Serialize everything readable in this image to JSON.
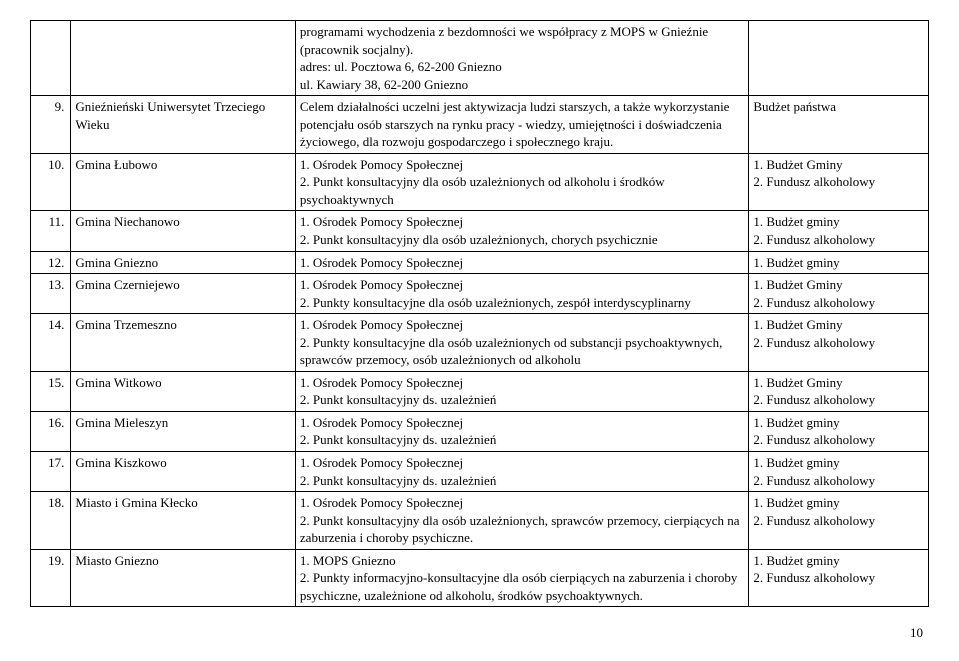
{
  "rows": [
    {
      "num": "",
      "name": "",
      "desc": "programami wychodzenia z bezdomności we współpracy z MOPS w Gnieźnie (pracownik socjalny).\nadres: ul. Pocztowa 6, 62-200 Gniezno\n             ul. Kawiary 38, 62-200 Gniezno",
      "fund": ""
    },
    {
      "num": "9.",
      "name": "Gnieźnieński Uniwersytet Trzeciego Wieku",
      "desc": "Celem działalności uczelni jest aktywizacja ludzi starszych, a także wykorzystanie potencjału osób starszych na rynku pracy - wiedzy, umiejętności i doświadczenia życiowego, dla rozwoju gospodarczego i społecznego kraju.",
      "fund": "Budżet państwa"
    },
    {
      "num": "10.",
      "name": "Gmina Łubowo",
      "desc": "1. Ośrodek Pomocy Społecznej\n2. Punkt konsultacyjny dla osób uzależnionych od alkoholu i środków psychoaktywnych",
      "fund": "1. Budżet Gminy\n2. Fundusz alkoholowy"
    },
    {
      "num": "11.",
      "name": "Gmina Niechanowo",
      "desc": "1. Ośrodek Pomocy Społecznej\n2. Punkt konsultacyjny dla osób uzależnionych, chorych psychicznie",
      "fund": "1. Budżet gminy\n2. Fundusz alkoholowy"
    },
    {
      "num": "12.",
      "name": "Gmina Gniezno",
      "desc": "1. Ośrodek Pomocy Społecznej",
      "fund": "1. Budżet gminy"
    },
    {
      "num": "13.",
      "name": "Gmina Czerniejewo",
      "desc": "1. Ośrodek Pomocy Społecznej\n2. Punkty konsultacyjne dla osób uzależnionych, zespół interdyscyplinarny",
      "fund": "1. Budżet Gminy\n2. Fundusz alkoholowy"
    },
    {
      "num": "14.",
      "name": "Gmina Trzemeszno",
      "desc": "1. Ośrodek Pomocy Społecznej\n2. Punkty konsultacyjne dla osób uzależnionych od substancji psychoaktywnych, sprawców przemocy, osób uzależnionych od alkoholu",
      "fund": "1. Budżet Gminy\n2. Fundusz alkoholowy"
    },
    {
      "num": "15.",
      "name": "Gmina Witkowo",
      "desc": "1. Ośrodek Pomocy Społecznej\n2. Punkt konsultacyjny ds. uzależnień",
      "fund": "1. Budżet Gminy\n2. Fundusz alkoholowy"
    },
    {
      "num": "16.",
      "name": "Gmina Mieleszyn",
      "desc": "1. Ośrodek Pomocy Społecznej\n2. Punkt konsultacyjny ds. uzależnień",
      "fund": "1. Budżet gminy\n2. Fundusz alkoholowy"
    },
    {
      "num": "17.",
      "name": "Gmina Kiszkowo",
      "desc": "1.  Ośrodek Pomocy Społecznej\n2.  Punkt konsultacyjny ds. uzależnień",
      "fund": "1. Budżet gminy\n2. Fundusz alkoholowy"
    },
    {
      "num": "18.",
      "name": "Miasto i Gmina Kłecko",
      "desc": "1. Ośrodek Pomocy Społecznej\n2. Punkt konsultacyjny dla osób uzależnionych, sprawców przemocy, cierpiących na zaburzenia i choroby psychiczne.",
      "fund": "1. Budżet gminy\n2. Fundusz alkoholowy"
    },
    {
      "num": "19.",
      "name": "Miasto Gniezno",
      "desc": "1. MOPS Gniezno\n2. Punkty informacyjno-konsultacyjne dla osób cierpiących na zaburzenia i choroby psychiczne, uzależnione od alkoholu, środków psychoaktywnych.",
      "fund": "1. Budżet gminy\n2. Fundusz alkoholowy"
    }
  ],
  "pageNumber": "10"
}
